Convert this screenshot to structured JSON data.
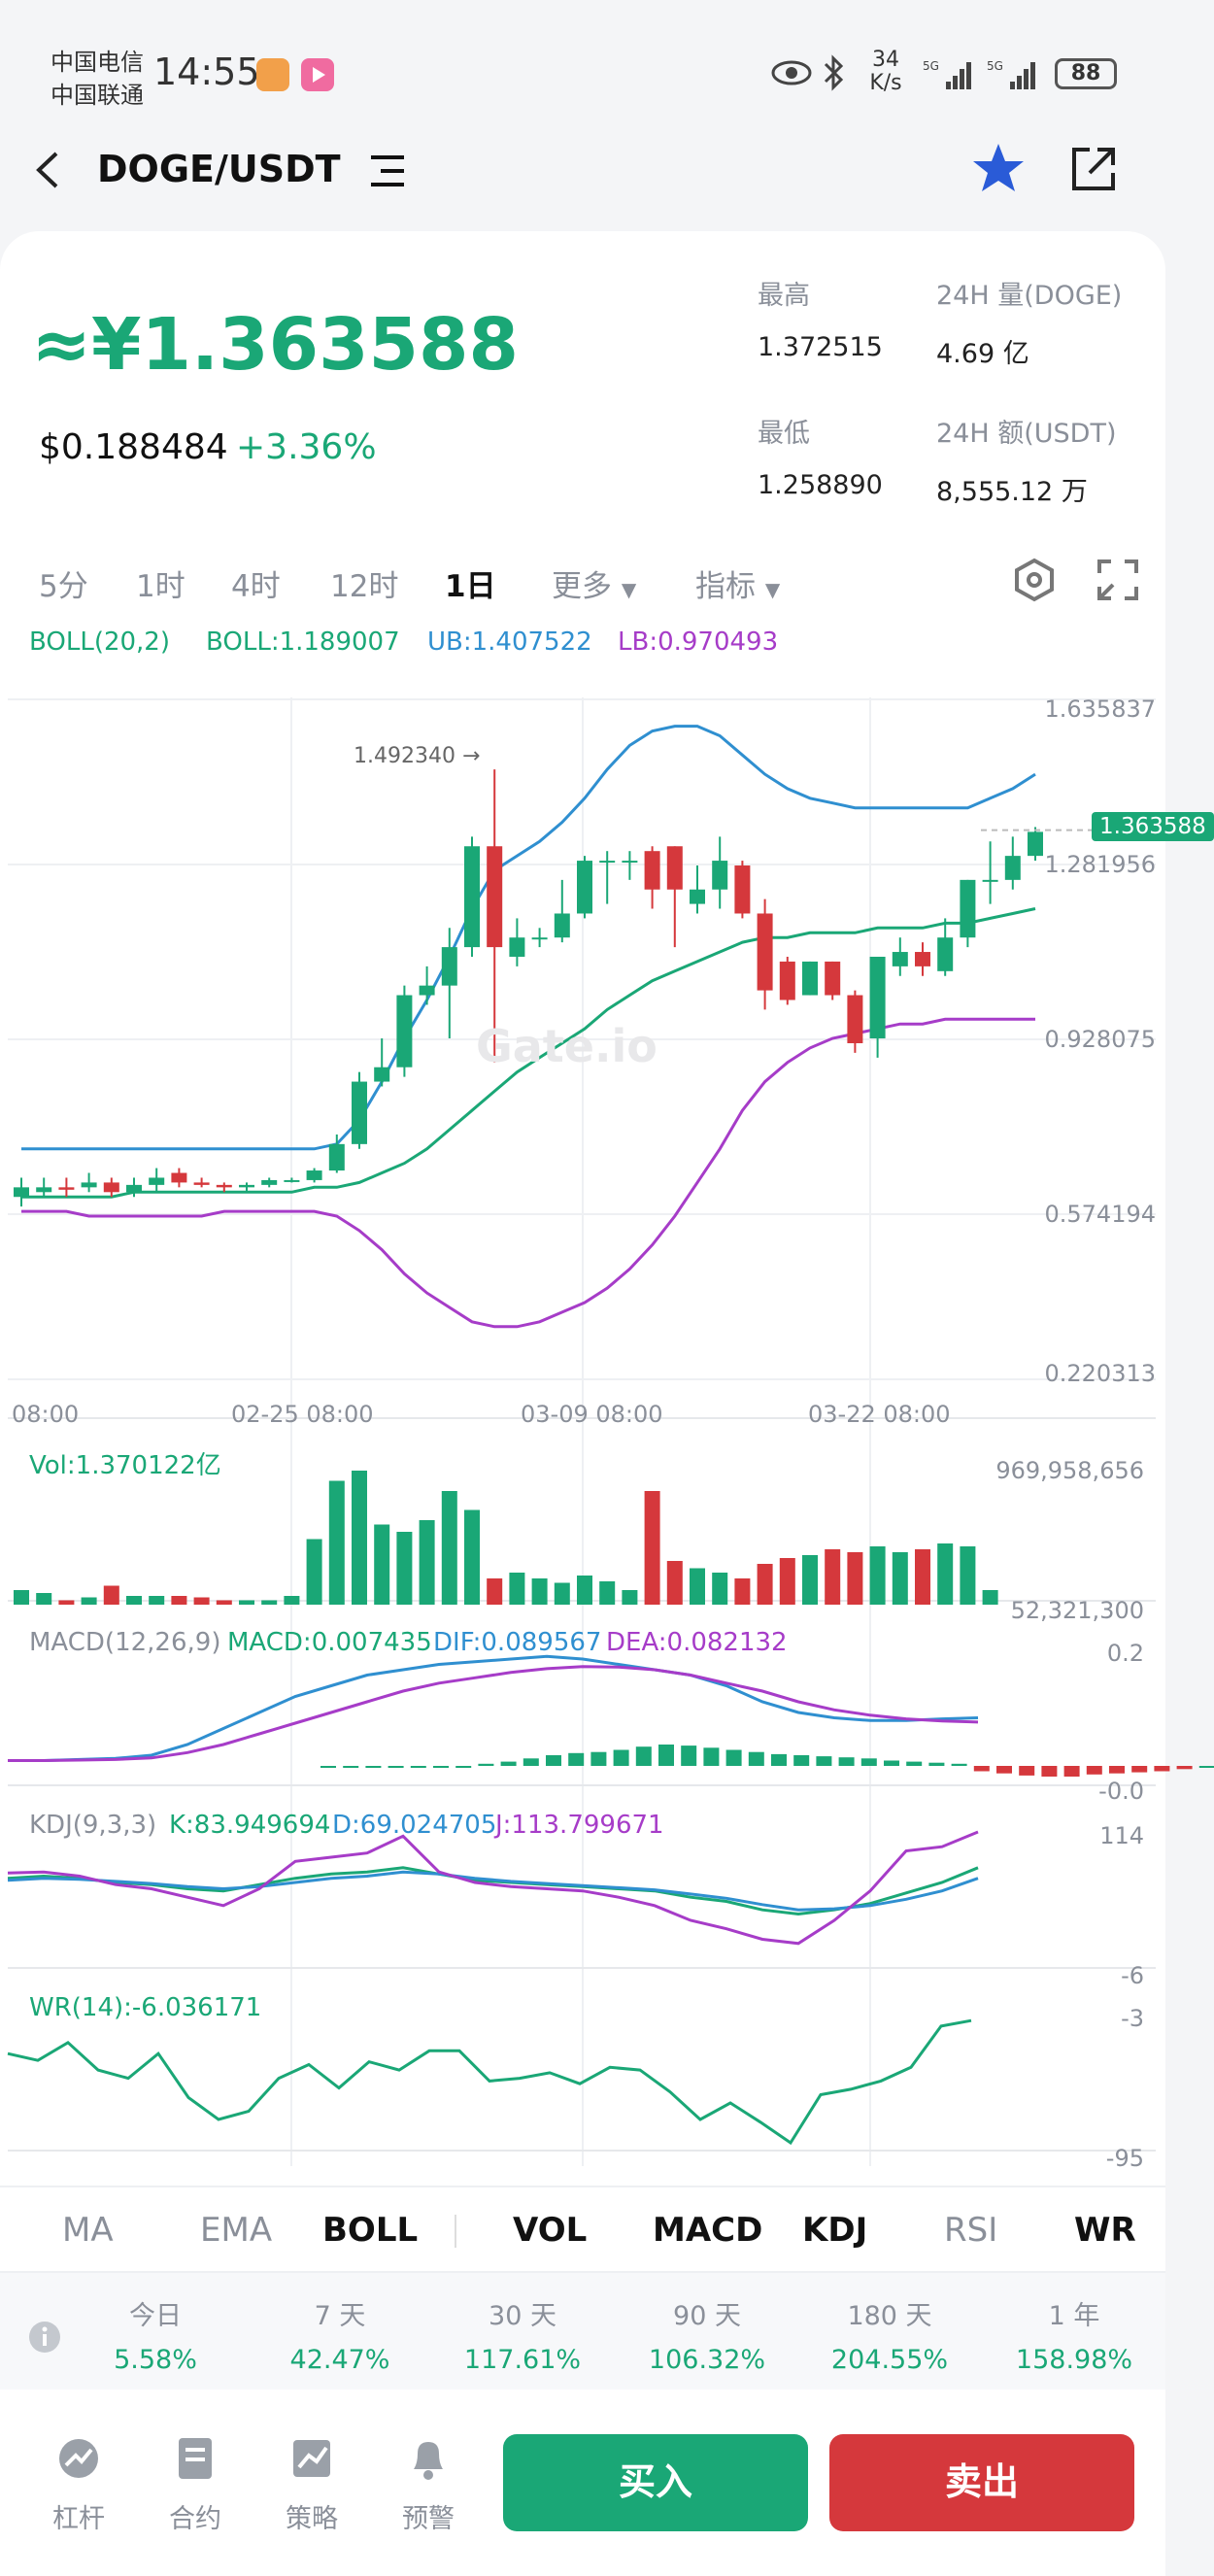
{
  "status": {
    "carrier1": "中国电信",
    "carrier2": "中国联通",
    "time": "14:55",
    "net_speed": "34",
    "net_unit": "K/s",
    "battery": "88"
  },
  "header": {
    "title": "DOGE/USDT"
  },
  "ticker": {
    "price_cny": "≈¥1.363588",
    "price_usd": "$0.188484",
    "change": "+3.36%",
    "high_label": "最高",
    "high": "1.372515",
    "low_label": "最低",
    "low": "1.258890",
    "vol_label": "24H 量(DOGE)",
    "vol": "4.69 亿",
    "amount_label": "24H 额(USDT)",
    "amount": "8,555.12 万"
  },
  "timeframes": [
    "5分",
    "1时",
    "4时",
    "12时",
    "1日",
    "更多",
    "指标"
  ],
  "boll_legend": {
    "name": "BOLL(20,2)",
    "boll": "BOLL:1.189007",
    "ub": "UB:1.407522",
    "lb": "LB:0.970493"
  },
  "price_axis": [
    "1.635837",
    "1.281956",
    "0.928075",
    "0.574194",
    "0.220313"
  ],
  "last_price_tag": "1.363588",
  "high_marker": "1.492340 →",
  "date_axis": [
    "08:00",
    "02-25 08:00",
    "03-09 08:00",
    "03-22 08:00"
  ],
  "watermark": "Gate.io",
  "vol_legend": "Vol:1.370122亿",
  "vol_axis": [
    "969,958,656",
    "52,321,300"
  ],
  "macd_legend": {
    "name": "MACD(12,26,9)",
    "macd": "MACD:0.007435",
    "dif": "DIF:0.089567",
    "dea": "DEA:0.082132"
  },
  "macd_axis": [
    "0.2",
    "-0.0"
  ],
  "kdj_legend": {
    "name": "KDJ(9,3,3)",
    "k": "K:83.949694",
    "d": "D:69.024705",
    "j": "J:113.799671"
  },
  "kdj_axis": [
    "114",
    "-6"
  ],
  "wr_legend": "WR(14):-6.036171",
  "wr_axis": [
    "-3",
    "-95"
  ],
  "indicator_tabs": [
    "MA",
    "EMA",
    "BOLL",
    "VOL",
    "MACD",
    "KDJ",
    "RSI",
    "WR"
  ],
  "performance": [
    {
      "label": "今日",
      "value": "5.58%"
    },
    {
      "label": "7 天",
      "value": "42.47%"
    },
    {
      "label": "30 天",
      "value": "117.61%"
    },
    {
      "label": "90 天",
      "value": "106.32%"
    },
    {
      "label": "180 天",
      "value": "204.55%"
    },
    {
      "label": "1 年",
      "value": "158.98%"
    }
  ],
  "nav": [
    "杠杆",
    "合约",
    "策略",
    "预警"
  ],
  "buy_label": "买入",
  "sell_label": "卖出",
  "colors": {
    "up": "#1aa776",
    "down": "#d5383c",
    "ub": "#2f8fd0",
    "lb": "#a63cc8",
    "mid": "#1aa776"
  },
  "chart_data": {
    "type": "candlestick",
    "ylim": [
      0.220313,
      1.635837
    ],
    "candles": [
      {
        "o": 0.6,
        "c": 0.62,
        "h": 0.64,
        "l": 0.58
      },
      {
        "o": 0.61,
        "c": 0.62,
        "h": 0.64,
        "l": 0.6
      },
      {
        "o": 0.62,
        "c": 0.615,
        "h": 0.64,
        "l": 0.6
      },
      {
        "o": 0.62,
        "c": 0.63,
        "h": 0.65,
        "l": 0.61
      },
      {
        "o": 0.63,
        "c": 0.61,
        "h": 0.64,
        "l": 0.6
      },
      {
        "o": 0.61,
        "c": 0.625,
        "h": 0.64,
        "l": 0.6
      },
      {
        "o": 0.625,
        "c": 0.64,
        "h": 0.66,
        "l": 0.61
      },
      {
        "o": 0.65,
        "c": 0.63,
        "h": 0.66,
        "l": 0.62
      },
      {
        "o": 0.63,
        "c": 0.625,
        "h": 0.64,
        "l": 0.62
      },
      {
        "o": 0.625,
        "c": 0.62,
        "h": 0.63,
        "l": 0.61
      },
      {
        "o": 0.62,
        "c": 0.625,
        "h": 0.63,
        "l": 0.61
      },
      {
        "o": 0.625,
        "c": 0.635,
        "h": 0.64,
        "l": 0.62
      },
      {
        "o": 0.635,
        "c": 0.635,
        "h": 0.64,
        "l": 0.63
      },
      {
        "o": 0.635,
        "c": 0.655,
        "h": 0.66,
        "l": 0.63
      },
      {
        "o": 0.655,
        "c": 0.71,
        "h": 0.73,
        "l": 0.65
      },
      {
        "o": 0.71,
        "c": 0.84,
        "h": 0.86,
        "l": 0.7
      },
      {
        "o": 0.84,
        "c": 0.87,
        "h": 0.93,
        "l": 0.83
      },
      {
        "o": 0.87,
        "c": 1.02,
        "h": 1.04,
        "l": 0.85
      },
      {
        "o": 1.02,
        "c": 1.04,
        "h": 1.08,
        "l": 1.0
      },
      {
        "o": 1.04,
        "c": 1.12,
        "h": 1.16,
        "l": 0.93
      },
      {
        "o": 1.12,
        "c": 1.33,
        "h": 1.35,
        "l": 1.1
      },
      {
        "o": 1.33,
        "c": 1.12,
        "h": 1.49,
        "l": 0.88
      },
      {
        "o": 1.1,
        "c": 1.14,
        "h": 1.18,
        "l": 1.08
      },
      {
        "o": 1.14,
        "c": 1.14,
        "h": 1.16,
        "l": 1.12
      },
      {
        "o": 1.14,
        "c": 1.19,
        "h": 1.26,
        "l": 1.13
      },
      {
        "o": 1.19,
        "c": 1.3,
        "h": 1.31,
        "l": 1.18
      },
      {
        "o": 1.3,
        "c": 1.3,
        "h": 1.32,
        "l": 1.21
      },
      {
        "o": 1.3,
        "c": 1.3,
        "h": 1.32,
        "l": 1.26
      },
      {
        "o": 1.32,
        "c": 1.24,
        "h": 1.33,
        "l": 1.2
      },
      {
        "o": 1.33,
        "c": 1.24,
        "h": 1.33,
        "l": 1.12
      },
      {
        "o": 1.21,
        "c": 1.24,
        "h": 1.29,
        "l": 1.19
      },
      {
        "o": 1.24,
        "c": 1.3,
        "h": 1.35,
        "l": 1.2
      },
      {
        "o": 1.29,
        "c": 1.19,
        "h": 1.3,
        "l": 1.18
      },
      {
        "o": 1.19,
        "c": 1.03,
        "h": 1.22,
        "l": 0.99
      },
      {
        "o": 1.09,
        "c": 1.01,
        "h": 1.1,
        "l": 1.0
      },
      {
        "o": 1.02,
        "c": 1.09,
        "h": 1.09,
        "l": 1.02
      },
      {
        "o": 1.09,
        "c": 1.02,
        "h": 1.09,
        "l": 1.01
      },
      {
        "o": 1.02,
        "c": 0.92,
        "h": 1.03,
        "l": 0.9
      },
      {
        "o": 0.93,
        "c": 1.1,
        "h": 1.1,
        "l": 0.89
      },
      {
        "o": 1.08,
        "c": 1.11,
        "h": 1.14,
        "l": 1.06
      },
      {
        "o": 1.11,
        "c": 1.08,
        "h": 1.13,
        "l": 1.06
      },
      {
        "o": 1.07,
        "c": 1.14,
        "h": 1.18,
        "l": 1.06
      },
      {
        "o": 1.14,
        "c": 1.26,
        "h": 1.26,
        "l": 1.12
      },
      {
        "o": 1.26,
        "c": 1.26,
        "h": 1.34,
        "l": 1.21
      },
      {
        "o": 1.26,
        "c": 1.31,
        "h": 1.35,
        "l": 1.24
      },
      {
        "o": 1.31,
        "c": 1.36,
        "h": 1.37,
        "l": 1.3
      }
    ],
    "boll_upper": [
      0.7,
      0.7,
      0.7,
      0.7,
      0.7,
      0.7,
      0.7,
      0.7,
      0.7,
      0.7,
      0.7,
      0.7,
      0.7,
      0.7,
      0.71,
      0.76,
      0.84,
      0.93,
      1.01,
      1.1,
      1.2,
      1.28,
      1.31,
      1.34,
      1.38,
      1.43,
      1.49,
      1.54,
      1.57,
      1.58,
      1.58,
      1.56,
      1.52,
      1.48,
      1.45,
      1.43,
      1.42,
      1.41,
      1.41,
      1.41,
      1.41,
      1.41,
      1.41,
      1.43,
      1.45,
      1.48
    ],
    "boll_mid": [
      0.6,
      0.6,
      0.6,
      0.6,
      0.6,
      0.61,
      0.61,
      0.61,
      0.61,
      0.61,
      0.61,
      0.61,
      0.61,
      0.62,
      0.62,
      0.63,
      0.65,
      0.67,
      0.7,
      0.74,
      0.78,
      0.82,
      0.86,
      0.89,
      0.92,
      0.95,
      0.99,
      1.02,
      1.05,
      1.07,
      1.09,
      1.11,
      1.13,
      1.14,
      1.14,
      1.15,
      1.15,
      1.15,
      1.16,
      1.16,
      1.16,
      1.17,
      1.17,
      1.18,
      1.19,
      1.2
    ],
    "boll_lower": [
      0.57,
      0.57,
      0.57,
      0.56,
      0.56,
      0.56,
      0.56,
      0.56,
      0.56,
      0.57,
      0.57,
      0.57,
      0.57,
      0.57,
      0.56,
      0.53,
      0.49,
      0.44,
      0.4,
      0.37,
      0.34,
      0.33,
      0.33,
      0.34,
      0.36,
      0.38,
      0.41,
      0.45,
      0.5,
      0.56,
      0.63,
      0.7,
      0.78,
      0.84,
      0.88,
      0.91,
      0.93,
      0.94,
      0.95,
      0.96,
      0.96,
      0.97,
      0.97,
      0.97,
      0.97,
      0.97
    ],
    "volume": [
      0.1,
      0.08,
      0.03,
      0.05,
      0.13,
      0.06,
      0.06,
      0.06,
      0.05,
      0.03,
      0.03,
      0.03,
      0.06,
      0.45,
      0.85,
      0.92,
      0.55,
      0.5,
      0.58,
      0.78,
      0.65,
      0.18,
      0.22,
      0.18,
      0.15,
      0.2,
      0.16,
      0.1,
      0.78,
      0.3,
      0.25,
      0.22,
      0.18,
      0.28,
      0.32,
      0.34,
      0.38,
      0.36,
      0.4,
      0.36,
      0.38,
      0.42,
      0.4,
      0.1
    ],
    "macd_hist": [
      0,
      0,
      0,
      0,
      0,
      0,
      0,
      0.004,
      0.008,
      0.014,
      0.02,
      0.024,
      0.026,
      0.03,
      0.036,
      0.04,
      0.038,
      0.034,
      0.03,
      0.026,
      0.022,
      0.02,
      0.018,
      0.016,
      0.014,
      0.01,
      0.008,
      0.006,
      0.004,
      -0.01,
      -0.014,
      -0.018,
      -0.02,
      -0.02,
      -0.016,
      -0.014,
      -0.012,
      -0.01,
      -0.006,
      0,
      0.004
    ],
    "macd_dif": [
      0.01,
      0.01,
      0.012,
      0.014,
      0.02,
      0.04,
      0.07,
      0.1,
      0.13,
      0.15,
      0.17,
      0.18,
      0.19,
      0.195,
      0.2,
      0.205,
      0.2,
      0.19,
      0.18,
      0.17,
      0.15,
      0.12,
      0.1,
      0.09,
      0.085,
      0.085,
      0.088,
      0.09
    ],
    "macd_dea": [
      0.01,
      0.01,
      0.011,
      0.012,
      0.015,
      0.025,
      0.04,
      0.06,
      0.08,
      0.1,
      0.12,
      0.14,
      0.155,
      0.165,
      0.175,
      0.182,
      0.186,
      0.185,
      0.18,
      0.17,
      0.155,
      0.14,
      0.12,
      0.105,
      0.095,
      0.088,
      0.084,
      0.082
    ],
    "kdj_k": [
      70,
      72,
      70,
      66,
      64,
      60,
      58,
      64,
      70,
      74,
      76,
      80,
      74,
      68,
      66,
      64,
      62,
      60,
      58,
      52,
      48,
      40,
      36,
      40,
      46,
      56,
      66,
      80
    ],
    "kdj_d": [
      68,
      70,
      69,
      67,
      65,
      62,
      60,
      62,
      66,
      70,
      72,
      76,
      74,
      70,
      67,
      65,
      63,
      61,
      59,
      55,
      51,
      45,
      40,
      41,
      44,
      50,
      58,
      70
    ],
    "kdj_j": [
      75,
      76,
      72,
      64,
      60,
      52,
      44,
      60,
      86,
      90,
      94,
      110,
      76,
      66,
      62,
      60,
      58,
      52,
      44,
      30,
      22,
      12,
      8,
      30,
      58,
      96,
      100,
      114
    ],
    "wr": [
      -30,
      -35,
      -22,
      -42,
      -48,
      -30,
      -62,
      -78,
      -72,
      -48,
      -38,
      -55,
      -36,
      -42,
      -28,
      -28,
      -50,
      -48,
      -44,
      -52,
      -40,
      -42,
      -58,
      -78,
      -66,
      -80,
      -95,
      -60,
      -56,
      -50,
      -40,
      -10,
      -6
    ]
  }
}
